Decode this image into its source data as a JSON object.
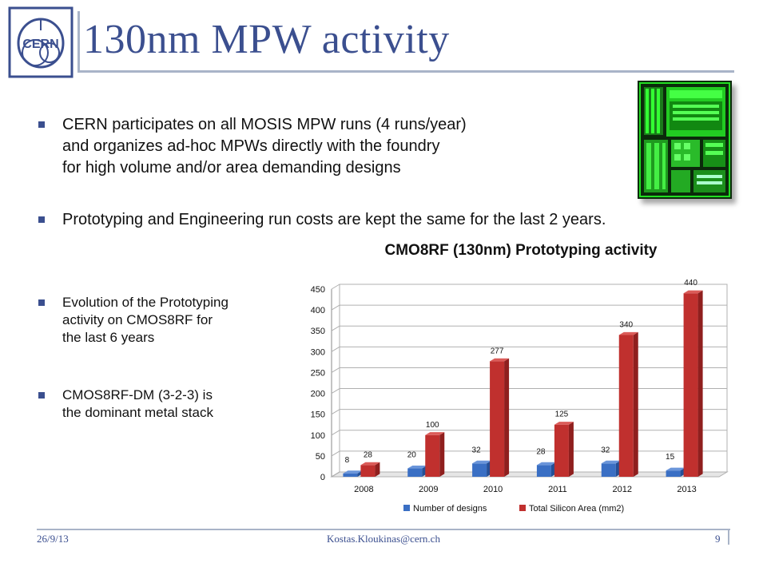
{
  "logo": {
    "text": "CERN"
  },
  "title": "130nm MPW activity",
  "bullets": {
    "b1": "CERN participates on all MOSIS MPW runs (4 runs/year)\nand organizes ad-hoc MPWs directly with the foundry\nfor high volume and/or area demanding designs",
    "b2": "Prototyping and Engineering run costs are kept the same for the last 2 years.",
    "b3": "Evolution of the Prototyping\nactivity on CMOS8RF for\nthe last 6 years",
    "b4": "CMOS8RF-DM (3-2-3) is\nthe dominant metal stack"
  },
  "colors": {
    "title": "#3b4f8f",
    "series_designs": "#3a6fc4",
    "series_area": "#c0302e",
    "chip_green": "#22dd22"
  },
  "chart_data": {
    "type": "bar",
    "title": "CMO8RF (130nm) Prototyping activity",
    "categories": [
      "2008",
      "2009",
      "2010",
      "2011",
      "2012",
      "2013"
    ],
    "series": [
      {
        "name": "Number of designs",
        "values": [
          8,
          20,
          32,
          28,
          32,
          15
        ],
        "data_labels": [
          "8",
          "20",
          "32",
          "28",
          "32",
          "15"
        ]
      },
      {
        "name": "Total Silicon Area (mm2)",
        "values": [
          28,
          100,
          277,
          125,
          340,
          440
        ],
        "data_labels": [
          "28",
          "100",
          "277",
          "125",
          "340",
          "440"
        ]
      }
    ],
    "yticks": [
      "0",
      "50",
      "100",
      "150",
      "200",
      "250",
      "300",
      "350",
      "400",
      "450"
    ],
    "ylim": [
      0,
      450
    ],
    "grid": true,
    "legend": "bottom",
    "style": "3d-clustered-bar"
  },
  "footer": {
    "date": "26/9/13",
    "email": "Kostas.Kloukinas@cern.ch",
    "page": "9"
  }
}
